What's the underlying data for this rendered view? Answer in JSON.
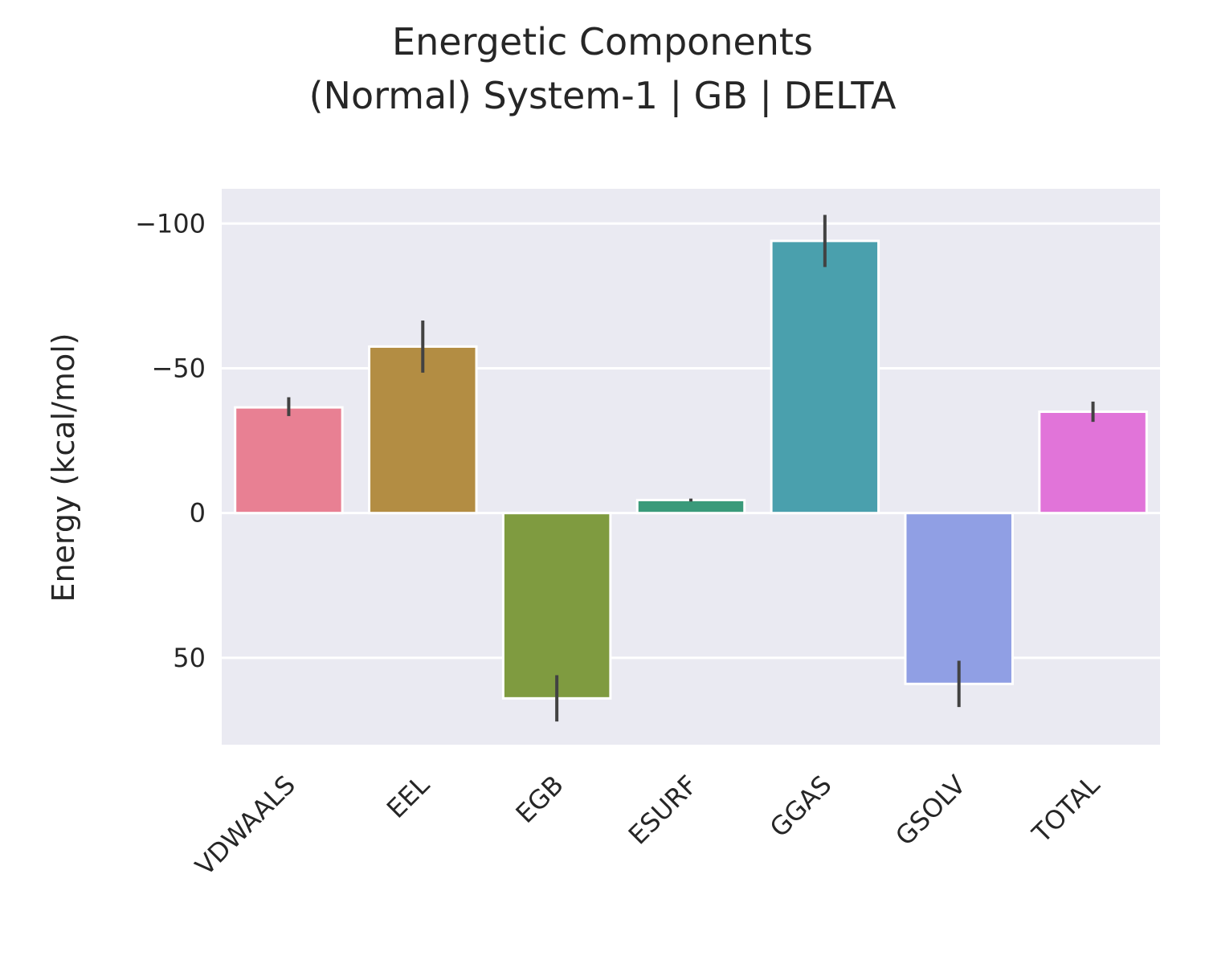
{
  "chart_data": {
    "type": "bar",
    "title_lines": [
      "Energetic Components",
      "(Normal) System-1 | GB | DELTA"
    ],
    "xlabel": "",
    "ylabel": "Energy (kcal/mol)",
    "y_inverted": true,
    "ylim": [
      -112,
      80
    ],
    "yticks": [
      -100,
      -50,
      0,
      50
    ],
    "ytick_labels": [
      "−100",
      "−50",
      "0",
      "50"
    ],
    "grid": true,
    "legend": false,
    "categories": [
      "VDWAALS",
      "EEL",
      "EGB",
      "ESURF",
      "GGAS",
      "GSOLV",
      "TOTAL"
    ],
    "values": [
      -36.5,
      -57.5,
      64.0,
      -4.5,
      -94.0,
      59.0,
      -35.0
    ],
    "error_low": [
      -33.5,
      -48.5,
      56.0,
      -4.0,
      -85.0,
      51.0,
      -31.5
    ],
    "error_high": [
      -40.0,
      -66.5,
      72.0,
      -5.0,
      -103.0,
      67.0,
      -38.5
    ],
    "colors": [
      "#e88093",
      "#b38d43",
      "#7f9b40",
      "#3a9a7a",
      "#4aa0ad",
      "#909fe4",
      "#e174d9"
    ],
    "errorbar_color": "#424242"
  }
}
